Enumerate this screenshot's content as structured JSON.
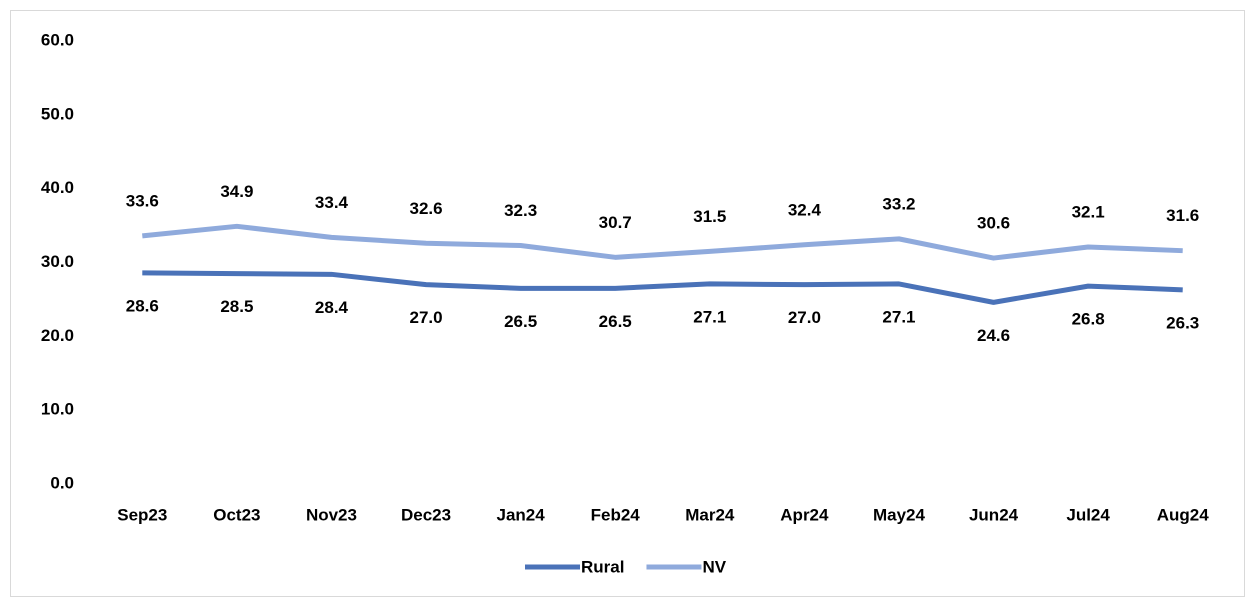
{
  "chart_data": {
    "type": "line",
    "categories": [
      "Sep23",
      "Oct23",
      "Nov23",
      "Dec23",
      "Jan24",
      "Feb24",
      "Mar24",
      "Apr24",
      "May24",
      "Jun24",
      "Jul24",
      "Aug24"
    ],
    "series": [
      {
        "name": "Rural",
        "color": "#4a72b8",
        "values": [
          28.6,
          28.5,
          28.4,
          27.0,
          26.5,
          26.5,
          27.1,
          27.0,
          27.1,
          24.6,
          26.8,
          26.3
        ],
        "value_labels": [
          "28.6",
          "28.5",
          "28.4",
          "27.0",
          "26.5",
          "26.5",
          "27.1",
          "27.0",
          "27.1",
          "24.6",
          "26.8",
          "26.3"
        ],
        "label_position": "below"
      },
      {
        "name": "NV",
        "color": "#8faadc",
        "values": [
          33.6,
          34.9,
          33.4,
          32.6,
          32.3,
          30.7,
          31.5,
          32.4,
          33.2,
          30.6,
          32.1,
          31.6
        ],
        "label_position": "above"
      }
    ],
    "ylim": [
      0,
      60
    ],
    "yticks": [
      {
        "value": 0,
        "label": "0.0"
      },
      {
        "value": 10,
        "label": "10.0"
      },
      {
        "value": 20,
        "label": "20.0"
      },
      {
        "value": 30,
        "label": "30.0"
      },
      {
        "value": 40,
        "label": "40.0"
      },
      {
        "value": 50,
        "label": "50.0"
      },
      {
        "value": 60,
        "label": "60.0"
      }
    ],
    "grid": false,
    "legend": "bottom"
  }
}
